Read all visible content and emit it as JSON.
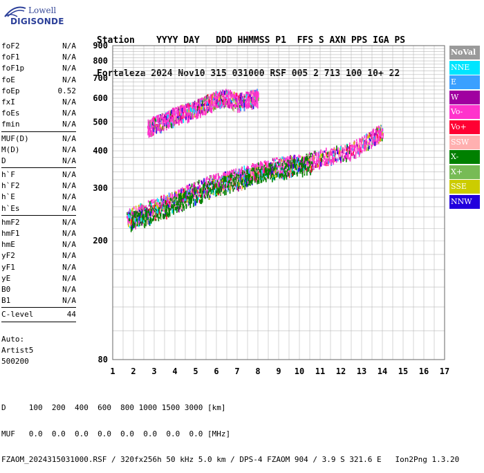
{
  "logo": {
    "line1": "Lowell",
    "line2": "DIGISONDE"
  },
  "header": {
    "line1": "Station    YYYY DAY   DDD HHMMSS P1  FFS S AXN PPS IGA PS",
    "line2": "Fortaleza 2024 Nov10 315 031000 RSF 005 2 713 100 10+ 22"
  },
  "params_group1": [
    {
      "name": "foF2",
      "value": "N/A"
    },
    {
      "name": "foF1",
      "value": "N/A"
    },
    {
      "name": "foF1p",
      "value": "N/A"
    },
    {
      "name": "foE",
      "value": "N/A"
    },
    {
      "name": "foEp",
      "value": "0.52"
    },
    {
      "name": "fxI",
      "value": "N/A"
    },
    {
      "name": "foEs",
      "value": "N/A"
    },
    {
      "name": "fmin",
      "value": "N/A"
    }
  ],
  "params_group2": [
    {
      "name": "MUF(D)",
      "value": "N/A"
    },
    {
      "name": "M(D)",
      "value": "N/A"
    },
    {
      "name": "D",
      "value": "N/A"
    }
  ],
  "params_group3": [
    {
      "name": "h`F",
      "value": "N/A"
    },
    {
      "name": "h`F2",
      "value": "N/A"
    },
    {
      "name": "h`E",
      "value": "N/A"
    },
    {
      "name": "h`Es",
      "value": "N/A"
    }
  ],
  "params_group4": [
    {
      "name": "hmF2",
      "value": "N/A"
    },
    {
      "name": "hmF1",
      "value": "N/A"
    },
    {
      "name": "hmE",
      "value": "N/A"
    },
    {
      "name": "yF2",
      "value": "N/A"
    },
    {
      "name": "yF1",
      "value": "N/A"
    },
    {
      "name": "yE",
      "value": "N/A"
    },
    {
      "name": "B0",
      "value": "N/A"
    },
    {
      "name": "B1",
      "value": "N/A"
    }
  ],
  "params_group5": [
    {
      "name": "C-level",
      "value": "44"
    }
  ],
  "auto": {
    "line1": "Auto:",
    "line2": "Artist5",
    "line3": "500200"
  },
  "bottom": {
    "d_line": "D     100  200  400  600  800 1000 1500 3000 [km]",
    "muf_line": "MUF   0.0  0.0  0.0  0.0  0.0  0.0  0.0  0.0 [MHz]",
    "footer": "FZAOM_2024315031000.RSF / 320fx256h 50 kHz 5.0 km / DPS-4 FZAOM 904 / 3.9 S 321.6 E   Ion2Png 1.3.20"
  },
  "legend": [
    {
      "label": "NoVal",
      "color": "#9a9a9a"
    },
    {
      "label": "NNE",
      "color": "#00e5ff"
    },
    {
      "label": "E",
      "color": "#3aa0ff"
    },
    {
      "label": "W",
      "color": "#a000a0"
    },
    {
      "label": "Vo-",
      "color": "#ff33cc"
    },
    {
      "label": "Vo+",
      "color": "#ff0033"
    },
    {
      "label": "SSW",
      "color": "#ffb0b0"
    },
    {
      "label": "X-",
      "color": "#008000"
    },
    {
      "label": "X+",
      "color": "#77bb55"
    },
    {
      "label": "SSE",
      "color": "#cccc00"
    },
    {
      "label": "NNW",
      "color": "#2200dd"
    }
  ],
  "chart_data": {
    "type": "scatter",
    "xlabel": "",
    "ylabel": "",
    "xlim": [
      1,
      17
    ],
    "ylim": [
      80,
      900
    ],
    "y_scale": "log",
    "x_ticks": [
      1,
      2,
      3,
      4,
      5,
      6,
      7,
      8,
      9,
      10,
      11,
      12,
      13,
      14,
      15,
      16,
      17
    ],
    "y_ticks": [
      80,
      200,
      300,
      400,
      500,
      600,
      700,
      800,
      900
    ],
    "grid": true,
    "legend_position": "right",
    "series": [
      {
        "name": "Vo-",
        "color": "#ff33cc",
        "points": [
          [
            1.7,
            240
          ],
          [
            2.5,
            255
          ],
          [
            3.5,
            270
          ],
          [
            4.5,
            290
          ],
          [
            5.5,
            310
          ],
          [
            6.5,
            325
          ],
          [
            7.5,
            340
          ],
          [
            8.5,
            355
          ],
          [
            9.5,
            365
          ],
          [
            10.5,
            375
          ],
          [
            11.5,
            390
          ],
          [
            12.5,
            405
          ],
          [
            13.5,
            445
          ],
          [
            14,
            470
          ]
        ]
      },
      {
        "name": "X-",
        "color": "#008000",
        "points": [
          [
            1.8,
            235
          ],
          [
            2.6,
            245
          ],
          [
            3.6,
            260
          ],
          [
            4.6,
            280
          ],
          [
            5.6,
            300
          ],
          [
            6.6,
            315
          ],
          [
            7.6,
            330
          ],
          [
            8.6,
            345
          ],
          [
            9.6,
            355
          ],
          [
            10.6,
            365
          ]
        ]
      },
      {
        "name": "Vo-",
        "color": "#ff33cc",
        "points": [
          [
            2.7,
            480
          ],
          [
            3,
            495
          ],
          [
            3.5,
            510
          ],
          [
            4,
            530
          ],
          [
            4.5,
            545
          ],
          [
            5,
            560
          ],
          [
            5.5,
            580
          ],
          [
            6,
            600
          ],
          [
            6.5,
            610
          ],
          [
            7,
            590
          ],
          [
            7.5,
            600
          ],
          [
            8,
            610
          ]
        ]
      }
    ]
  }
}
